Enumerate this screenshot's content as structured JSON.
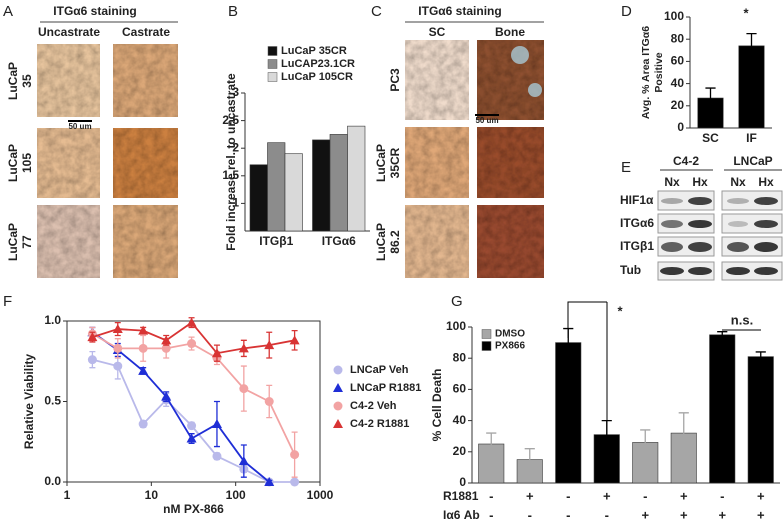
{
  "figure": {
    "panel_a": {
      "label": "A",
      "title": "ITGα6 staining",
      "columns": [
        "Uncastrate",
        "Castrate"
      ],
      "rows": [
        [
          "LuCaP",
          "35"
        ],
        [
          "LuCaP",
          "105"
        ],
        [
          "LuCaP",
          "77"
        ]
      ],
      "scale_bar": "50 um"
    },
    "panel_c": {
      "label": "C",
      "title": "ITGα6 staining",
      "columns": [
        "SC",
        "Bone"
      ],
      "rows": [
        [
          "PC3"
        ],
        [
          "LuCaP",
          "35CR"
        ],
        [
          "LuCaP",
          "86.2"
        ]
      ],
      "scale_bar": "50 um"
    },
    "panel_e": {
      "label": "E",
      "groups": [
        "C4-2",
        "LNCaP"
      ],
      "lanes": [
        "Nx",
        "Hx",
        "Nx",
        "Hx"
      ],
      "rows": [
        "HIF1α",
        "ITGα6",
        "ITGβ1",
        "Tub"
      ]
    }
  },
  "chart_data": [
    {
      "type": "bar",
      "panel_label": "B",
      "categories": [
        "ITGβ1",
        "ITGα6"
      ],
      "series": [
        {
          "name": "LuCaP 35CR",
          "color": "#111111",
          "values": [
            1.7,
            2.15
          ]
        },
        {
          "name": "LuCAP23.1CR",
          "color": "#8c8c8c",
          "values": [
            2.1,
            2.25
          ]
        },
        {
          "name": "LuCaP 105CR",
          "color": "#d9d9d9",
          "values": [
            1.9,
            2.4
          ]
        }
      ],
      "ylim": [
        0.5,
        3
      ],
      "yticks": [
        1,
        1.5,
        2,
        2.5,
        3
      ],
      "ylabel": "Fold increase rel. to uncastrate"
    },
    {
      "type": "bar",
      "panel_label": "D",
      "categories": [
        "SC",
        "IF"
      ],
      "values": [
        27,
        74
      ],
      "errors": [
        9,
        11
      ],
      "color": "#000000",
      "ylim": [
        0,
        100
      ],
      "yticks": [
        0,
        20,
        40,
        60,
        80,
        100
      ],
      "ylabel_lines": [
        "Avg. % Area ITGα6",
        "Positive"
      ],
      "annotations": [
        "*"
      ]
    },
    {
      "type": "line",
      "panel_label": "F",
      "x": [
        2,
        4,
        8,
        15,
        30,
        60,
        125,
        250,
        500
      ],
      "xscale": "log",
      "xlim": [
        1,
        1000
      ],
      "xticks": [
        1,
        10,
        100,
        1000
      ],
      "ylim": [
        0,
        1
      ],
      "yticks": [
        {
          "value": 0,
          "label": "0.0"
        },
        {
          "value": 0.5,
          "label": "0.5"
        },
        {
          "value": 1,
          "label": "1.0"
        }
      ],
      "xlabel": "nM PX-866",
      "ylabel": "Relative Viability",
      "series": [
        {
          "name": "LNCaP Veh",
          "color": "#b9b9ea",
          "marker": "circle",
          "values": [
            0.76,
            0.72,
            0.36,
            0.51,
            0.35,
            0.16,
            0.08,
            0.0,
            0.0
          ],
          "errors": [
            0.05,
            0.08,
            0.02,
            0.04,
            0.02,
            0.02,
            0.02,
            0.01,
            0.01
          ]
        },
        {
          "name": "LNCaP R1881",
          "color": "#1f2ed6",
          "marker": "triangle",
          "values": [
            0.93,
            0.82,
            0.69,
            0.53,
            0.27,
            0.36,
            0.13,
            0.0,
            null
          ],
          "errors": [
            0.03,
            0.04,
            0.02,
            0.03,
            0.03,
            0.14,
            0.1,
            0.01,
            null
          ]
        },
        {
          "name": "C4-2 Veh",
          "color": "#f2a3a3",
          "marker": "circle",
          "values": [
            0.92,
            0.83,
            0.83,
            0.83,
            0.86,
            0.77,
            0.58,
            0.5,
            0.17
          ],
          "errors": [
            0.04,
            0.06,
            0.08,
            0.06,
            0.04,
            0.04,
            0.14,
            0.1,
            0.14
          ]
        },
        {
          "name": "C4-2 R1881",
          "color": "#d83434",
          "marker": "triangle",
          "values": [
            0.9,
            0.95,
            0.94,
            0.88,
            0.99,
            0.8,
            0.83,
            0.85,
            0.88
          ],
          "errors": [
            0.03,
            0.04,
            0.02,
            0.03,
            0.03,
            0.05,
            0.05,
            0.08,
            0.06
          ]
        }
      ]
    },
    {
      "type": "bar",
      "panel_label": "G",
      "categories": [
        null,
        null,
        null,
        null,
        null,
        null,
        null,
        null
      ],
      "series": [
        {
          "name": "DMSO",
          "color": "#a6a6a6",
          "values": [
            25,
            15,
            null,
            null,
            26,
            32,
            null,
            null
          ],
          "errors": [
            7,
            7,
            null,
            null,
            8,
            13,
            null,
            null
          ]
        },
        {
          "name": "PX866",
          "color": "#000000",
          "values": [
            null,
            null,
            90,
            31,
            null,
            null,
            95,
            81
          ],
          "errors": [
            null,
            null,
            9,
            9,
            null,
            null,
            2,
            3
          ]
        }
      ],
      "ylim": [
        0,
        100
      ],
      "yticks": [
        0,
        20,
        40,
        60,
        80,
        100
      ],
      "ylabel": "% Cell Death",
      "conditions": [
        {
          "name": "R1881",
          "values": [
            "-",
            "+",
            "-",
            "+",
            "-",
            "+",
            "-",
            "+"
          ]
        },
        {
          "name": "Iα6 Ab",
          "values": [
            "-",
            "-",
            "-",
            "-",
            "+",
            "+",
            "+",
            "+"
          ]
        }
      ],
      "annotations": [
        "*",
        "n.s."
      ]
    }
  ]
}
